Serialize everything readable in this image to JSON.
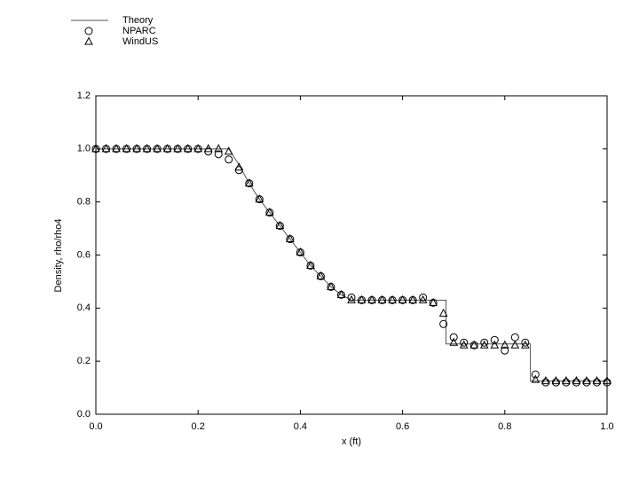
{
  "chart_data": {
    "type": "line",
    "xlabel": "x (ft)",
    "ylabel": "Density, rho/rho4",
    "xlim": [
      0,
      1
    ],
    "ylim": [
      0,
      1.2
    ],
    "xticks": [
      {
        "value": 0,
        "label": "0.0"
      },
      0.2,
      0.4,
      0.6,
      0.8,
      {
        "value": 1,
        "label": "1.0"
      }
    ],
    "yticks": [
      {
        "value": 0,
        "label": "0.0"
      },
      0.2,
      0.4,
      0.6,
      0.8,
      {
        "value": 1,
        "label": "1.0"
      },
      1.2
    ],
    "legend": "top-left",
    "series": [
      {
        "name": "Theory",
        "color": "#555555",
        "marker": "none",
        "x": [
          0,
          0.26,
          0.28,
          0.3,
          0.32,
          0.34,
          0.36,
          0.38,
          0.4,
          0.42,
          0.44,
          0.46,
          0.48,
          0.5,
          0.685,
          0.685,
          0.85,
          0.85,
          1.0
        ],
        "values": [
          1.0,
          1.0,
          0.94,
          0.87,
          0.81,
          0.76,
          0.71,
          0.66,
          0.61,
          0.56,
          0.52,
          0.48,
          0.45,
          0.43,
          0.43,
          0.265,
          0.265,
          0.125,
          0.125
        ]
      },
      {
        "name": "NPARC",
        "color": "#000000",
        "marker": "circle",
        "x": [
          0,
          0.02,
          0.04,
          0.06,
          0.08,
          0.1,
          0.12,
          0.14,
          0.16,
          0.18,
          0.2,
          0.22,
          0.24,
          0.26,
          0.28,
          0.3,
          0.32,
          0.34,
          0.36,
          0.38,
          0.4,
          0.42,
          0.44,
          0.46,
          0.48,
          0.5,
          0.52,
          0.54,
          0.56,
          0.58,
          0.6,
          0.62,
          0.64,
          0.66,
          0.68,
          0.7,
          0.72,
          0.74,
          0.76,
          0.78,
          0.8,
          0.82,
          0.84,
          0.86,
          0.88,
          0.9,
          0.92,
          0.94,
          0.96,
          0.98,
          1.0
        ],
        "values": [
          1.0,
          1.0,
          1.0,
          1.0,
          1.0,
          1.0,
          1.0,
          1.0,
          1.0,
          1.0,
          1.0,
          0.99,
          0.98,
          0.96,
          0.92,
          0.87,
          0.81,
          0.76,
          0.71,
          0.66,
          0.61,
          0.56,
          0.52,
          0.48,
          0.45,
          0.44,
          0.43,
          0.43,
          0.43,
          0.43,
          0.43,
          0.43,
          0.44,
          0.42,
          0.34,
          0.29,
          0.27,
          0.26,
          0.27,
          0.28,
          0.24,
          0.29,
          0.27,
          0.15,
          0.12,
          0.12,
          0.12,
          0.12,
          0.12,
          0.12,
          0.12
        ]
      },
      {
        "name": "WindUS",
        "color": "#000000",
        "marker": "triangle",
        "x": [
          0,
          0.02,
          0.04,
          0.06,
          0.08,
          0.1,
          0.12,
          0.14,
          0.16,
          0.18,
          0.2,
          0.22,
          0.24,
          0.26,
          0.28,
          0.3,
          0.32,
          0.34,
          0.36,
          0.38,
          0.4,
          0.42,
          0.44,
          0.46,
          0.48,
          0.5,
          0.52,
          0.54,
          0.56,
          0.58,
          0.6,
          0.62,
          0.64,
          0.66,
          0.68,
          0.7,
          0.72,
          0.74,
          0.76,
          0.78,
          0.8,
          0.82,
          0.84,
          0.86,
          0.88,
          0.9,
          0.92,
          0.94,
          0.96,
          0.98,
          1.0
        ],
        "values": [
          1.0,
          1.0,
          1.0,
          1.0,
          1.0,
          1.0,
          1.0,
          1.0,
          1.0,
          1.0,
          1.0,
          1.0,
          1.0,
          0.99,
          0.93,
          0.87,
          0.81,
          0.76,
          0.71,
          0.66,
          0.61,
          0.56,
          0.52,
          0.48,
          0.45,
          0.43,
          0.43,
          0.43,
          0.43,
          0.43,
          0.43,
          0.43,
          0.43,
          0.42,
          0.38,
          0.27,
          0.26,
          0.26,
          0.26,
          0.26,
          0.26,
          0.26,
          0.26,
          0.13,
          0.125,
          0.125,
          0.125,
          0.125,
          0.125,
          0.125,
          0.125
        ]
      }
    ]
  }
}
